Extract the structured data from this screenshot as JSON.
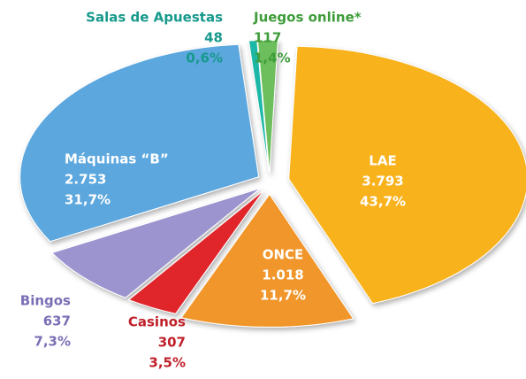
{
  "chart_data": {
    "type": "pie",
    "categories": [
      "LAE",
      "ONCE",
      "Casinos",
      "Bingos",
      "Máquinas “B”",
      "Salas de Apuestas",
      "Juegos online*"
    ],
    "values": [
      3793,
      1018,
      307,
      637,
      2753,
      48,
      117
    ],
    "value_labels": [
      "3.793",
      "1.018",
      "307",
      "637",
      "2.753",
      "48",
      "117"
    ],
    "percents": [
      43.7,
      11.7,
      3.5,
      7.3,
      31.7,
      0.6,
      1.4
    ],
    "percent_labels": [
      "43,7%",
      "11,7%",
      "3,5%",
      "7,3%",
      "31,7%",
      "0,6%",
      "1,4%"
    ],
    "colors": [
      "#f8b21c",
      "#f0962b",
      "#e0252c",
      "#9b94cf",
      "#5ba7de",
      "#1fb7a6",
      "#6dbe5c"
    ]
  }
}
